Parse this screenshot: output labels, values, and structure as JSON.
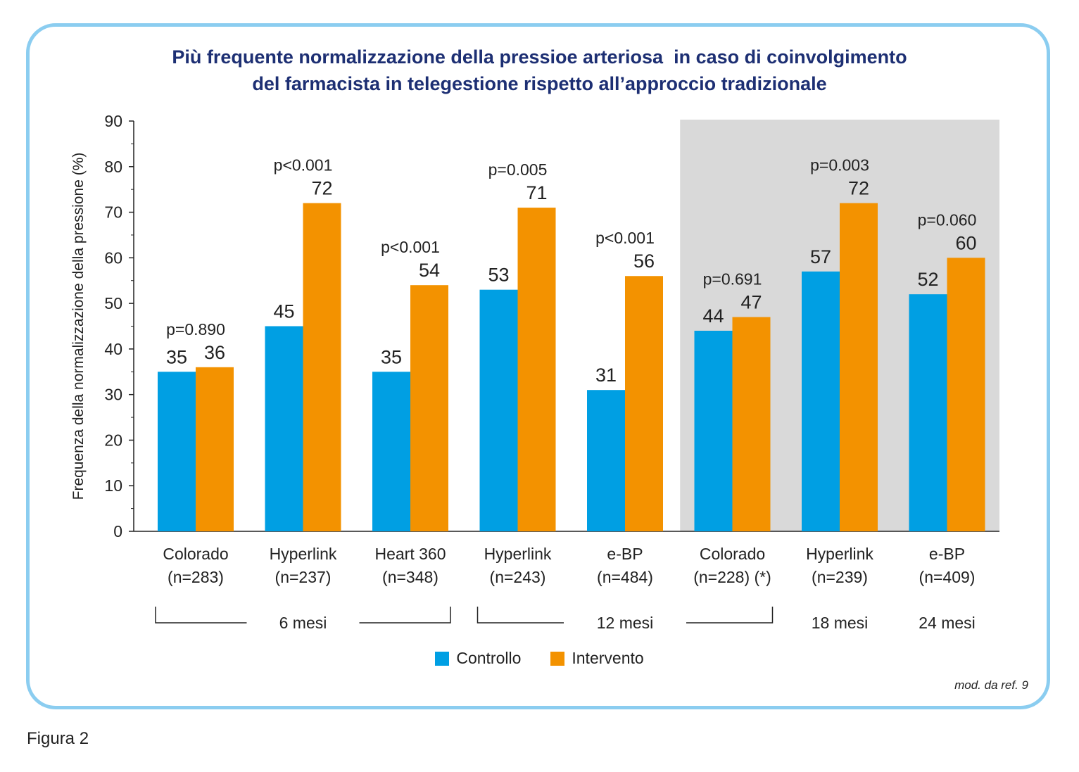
{
  "title_lines": [
    "Più frequente normalizzazione della pressioe arteriosa  in caso di coinvolgimento",
    "del farmacista in telegestione rispetto all’approccio tradizionale"
  ],
  "figure_label": "Figura 2",
  "source_note": "mod. da ref. 9",
  "colors": {
    "controllo": "#009fe3",
    "intervento": "#f39200",
    "shade": "#d9d9d9",
    "frame": "#8bcdf0",
    "title": "#1d2f73"
  },
  "legend": [
    {
      "label": "Controllo",
      "color": "#009fe3"
    },
    {
      "label": "Intervento",
      "color": "#f39200"
    }
  ],
  "chart_data": {
    "type": "bar",
    "ylabel": "Frequenza della normalizzazione della pressione (%)",
    "ylim": [
      0,
      90
    ],
    "yticks": [
      0,
      10,
      20,
      30,
      40,
      50,
      60,
      70,
      80,
      90
    ],
    "categories": [
      [
        "Colorado",
        "(n=283)"
      ],
      [
        "Hyperlink",
        "(n=237)"
      ],
      [
        "Heart 360",
        "(n=348)"
      ],
      [
        "Hyperlink",
        "(n=243)"
      ],
      [
        "e-BP",
        "(n=484)"
      ],
      [
        "Colorado",
        "(n=228) (*)"
      ],
      [
        "Hyperlink",
        "(n=239)"
      ],
      [
        "e-BP",
        "(n=409)"
      ]
    ],
    "series": [
      {
        "name": "Controllo",
        "values": [
          35,
          45,
          35,
          53,
          31,
          44,
          57,
          52
        ],
        "labels": [
          "35",
          "45",
          "35",
          "53",
          "31",
          "44",
          "57",
          "52"
        ]
      },
      {
        "name": "Intervento",
        "values": [
          36,
          72,
          54,
          71,
          56,
          47,
          72,
          60
        ],
        "labels": [
          "36",
          "72",
          "54",
          "71",
          "56",
          "47",
          "72",
          "60"
        ]
      }
    ],
    "p_values": [
      "p=0.890",
      "p<0.001",
      "p<0.001",
      "p=0.005",
      "p<0.001",
      "p=0.691",
      "p=0.003",
      "p=0.060"
    ],
    "shaded_categories": [
      5,
      6,
      7
    ],
    "groups": [
      {
        "label": "6 mesi",
        "from": 0,
        "to": 2,
        "bracket": true
      },
      {
        "label": "12 mesi",
        "from": 3,
        "to": 5,
        "bracket": true
      },
      {
        "label": "18 mesi",
        "from": 6,
        "to": 6,
        "bracket": false
      },
      {
        "label": "24 mesi",
        "from": 7,
        "to": 7,
        "bracket": false
      }
    ]
  }
}
